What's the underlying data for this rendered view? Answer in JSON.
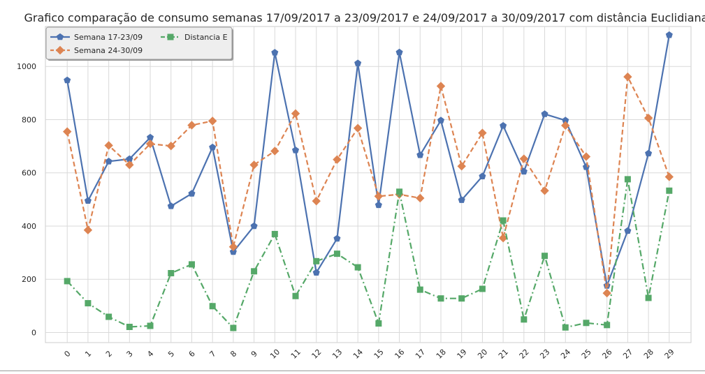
{
  "chart_data": {
    "type": "line",
    "title": "Grafico comparação de consumo semanas 17/09/2017 a 23/09/2017 e 24/09/2017 a 30/09/2017 com distância Euclidiana",
    "xlabel": "",
    "ylabel": "",
    "x": [
      0,
      1,
      2,
      3,
      4,
      5,
      6,
      7,
      8,
      9,
      10,
      11,
      12,
      13,
      14,
      15,
      16,
      17,
      18,
      19,
      20,
      21,
      22,
      23,
      24,
      25,
      26,
      27,
      28,
      29
    ],
    "xlim": [
      -1.05,
      30.05
    ],
    "ylim": [
      -38,
      1150
    ],
    "yticks": [
      0,
      200,
      400,
      600,
      800,
      1000
    ],
    "grid": true,
    "legend_position": "top-left",
    "series": [
      {
        "name": "Semana 17-23/09",
        "color": "#4c72b0",
        "marker": "pentagon",
        "linestyle": "solid",
        "values": [
          948,
          495,
          643,
          652,
          733,
          475,
          522,
          696,
          303,
          400,
          1052,
          685,
          225,
          353,
          1012,
          479,
          1053,
          667,
          797,
          498,
          587,
          777,
          605,
          821,
          797,
          622,
          176,
          382,
          673,
          1118
        ]
      },
      {
        "name": "Semana 24-30/09",
        "color": "#dd8452",
        "marker": "diamond",
        "linestyle": "dashed",
        "values": [
          755,
          385,
          703,
          630,
          709,
          701,
          779,
          795,
          322,
          630,
          682,
          823,
          494,
          650,
          768,
          512,
          519,
          505,
          926,
          625,
          750,
          355,
          653,
          533,
          778,
          661,
          148,
          961,
          806,
          585
        ]
      },
      {
        "name": "Distancia E",
        "color": "#55a868",
        "marker": "square",
        "linestyle": "dashdot",
        "values": [
          193,
          110,
          59,
          21,
          25,
          223,
          256,
          99,
          17,
          230,
          370,
          137,
          268,
          296,
          245,
          34,
          529,
          161,
          128,
          128,
          164,
          421,
          49,
          288,
          19,
          36,
          28,
          576,
          130,
          533
        ]
      }
    ]
  }
}
